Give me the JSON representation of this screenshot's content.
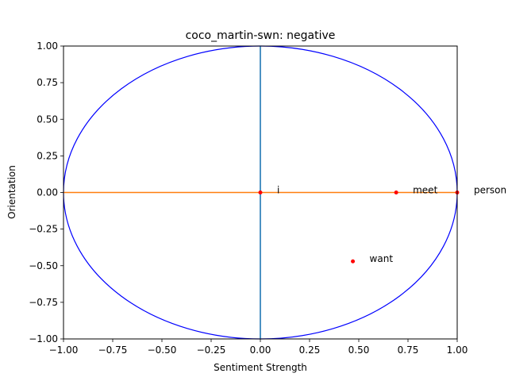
{
  "chart_data": {
    "type": "scatter",
    "title": "coco_martin-swn: negative",
    "xlabel": "Sentiment Strength",
    "ylabel": "Orientation",
    "xlim": [
      -1.0,
      1.0
    ],
    "ylim": [
      -1.0,
      1.0
    ],
    "xticks": [
      "−1.00",
      "−0.75",
      "−0.50",
      "−0.25",
      "0.00",
      "0.25",
      "0.50",
      "0.75",
      "1.00"
    ],
    "yticks": [
      "−1.00",
      "−0.75",
      "−0.50",
      "−0.25",
      "0.00",
      "0.25",
      "0.50",
      "0.75",
      "1.00"
    ],
    "grid": false,
    "points": [
      {
        "label": "i",
        "x": 0.0,
        "y": 0.0
      },
      {
        "label": "meet",
        "x": 0.69,
        "y": 0.0
      },
      {
        "label": "person",
        "x": 1.0,
        "y": 0.0
      },
      {
        "label": "want",
        "x": 0.47,
        "y": -0.47
      }
    ],
    "colors": {
      "circle": "#0000ff",
      "vertical_line": "#1f77b4",
      "horizontal_line": "#ff7f0e",
      "points": "#ff0000"
    }
  }
}
